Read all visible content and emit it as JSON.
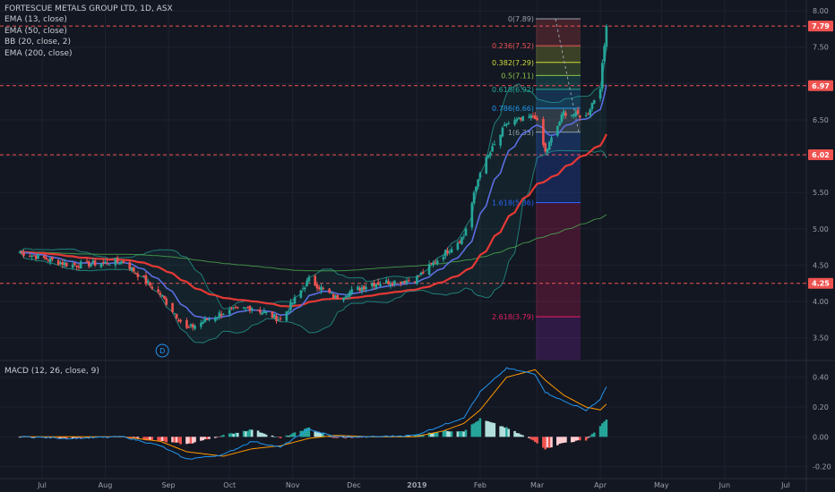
{
  "legend": {
    "title": "FORTESCUE METALS GROUP LTD, 1D, ASX",
    "items": [
      "EMA (13, close)",
      "EMA (50, close)",
      "BB (20, close, 2)",
      "EMA (200, close)"
    ]
  },
  "macd_label": "MACD (12, 26, close, 9)",
  "colors": {
    "background": "#131722",
    "up": "#26a69a",
    "down": "#ef5350",
    "ema13": "#5b6ee1",
    "ema50": "#e53935",
    "ema200": "#4caf50",
    "bb": "#26a69a",
    "macd": "#2196f3",
    "signal": "#ff9800",
    "hline": "#ef5350"
  },
  "chart_data": [
    {
      "type": "candlestick",
      "x_ticks": [
        "Jul",
        "Aug",
        "Sep",
        "Oct",
        "Nov",
        "Dec",
        "2019",
        "Feb",
        "Mar",
        "Apr",
        "May",
        "Jun",
        "Jul"
      ],
      "y_ticks": [
        "3.50",
        "4.00",
        "4.50",
        "5.00",
        "5.50",
        "6.00",
        "6.50",
        "7.00",
        "7.50",
        "8.00"
      ],
      "ylim": [
        3.2,
        8.1
      ],
      "price_labels": [
        "7.79",
        "6.97",
        "6.02",
        "4.25"
      ],
      "horizontal_levels": [
        7.79,
        6.97,
        6.02,
        4.25
      ],
      "fib_levels": [
        {
          "label": "0(7.89)",
          "value": 7.89
        },
        {
          "label": "0.236(7.52)",
          "value": 7.52
        },
        {
          "label": "0.382(7.29)",
          "value": 7.29
        },
        {
          "label": "0.5(7.11)",
          "value": 7.11
        },
        {
          "label": "0.618(6.92)",
          "value": 6.92
        },
        {
          "label": "0.786(6.66)",
          "value": 6.66
        },
        {
          "label": "1(6.33)",
          "value": 6.33
        },
        {
          "label": "1.618(5.36)",
          "value": 5.36
        },
        {
          "label": "2.618(3.79)",
          "value": 3.79
        }
      ],
      "annotation": "D",
      "key_prices": [
        {
          "date": "Jun 20",
          "close": 4.68
        },
        {
          "date": "Jul 15",
          "close": 4.5
        },
        {
          "date": "Aug 10",
          "close": 4.55
        },
        {
          "date": "Aug 28",
          "close": 4.1
        },
        {
          "date": "Sep 10",
          "close": 3.62
        },
        {
          "date": "Sep 28",
          "close": 3.85
        },
        {
          "date": "Oct 12",
          "close": 3.92
        },
        {
          "date": "Oct 26",
          "close": 3.75
        },
        {
          "date": "Nov 9",
          "close": 4.3
        },
        {
          "date": "Nov 22",
          "close": 4.05
        },
        {
          "date": "Dec 10",
          "close": 4.25
        },
        {
          "date": "Dec 31",
          "close": 4.3
        },
        {
          "date": "Jan 14",
          "close": 4.65
        },
        {
          "date": "Jan 24",
          "close": 4.9
        },
        {
          "date": "Feb 1",
          "close": 5.8
        },
        {
          "date": "Feb 14",
          "close": 6.45
        },
        {
          "date": "Feb 28",
          "close": 6.55
        },
        {
          "date": "Mar 5",
          "close": 6.05
        },
        {
          "date": "Mar 14",
          "close": 6.6
        },
        {
          "date": "Mar 25",
          "close": 6.55
        },
        {
          "date": "Apr 1",
          "close": 6.97
        },
        {
          "date": "Apr 4",
          "close": 7.79
        }
      ]
    },
    {
      "type": "line",
      "title": "MACD (12, 26, close, 9)",
      "y_ticks": [
        "0.40",
        "0.20",
        "0.00",
        "-0.20"
      ],
      "ylim": [
        -0.25,
        0.5
      ],
      "macd_points": [
        {
          "date": "Jun 20",
          "value": 0.0
        },
        {
          "date": "Jul 15",
          "value": -0.01
        },
        {
          "date": "Aug 10",
          "value": 0.0
        },
        {
          "date": "Aug 28",
          "value": -0.06
        },
        {
          "date": "Sep 10",
          "value": -0.15
        },
        {
          "date": "Sep 28",
          "value": -0.12
        },
        {
          "date": "Oct 12",
          "value": -0.03
        },
        {
          "date": "Oct 26",
          "value": -0.07
        },
        {
          "date": "Nov 9",
          "value": 0.05
        },
        {
          "date": "Nov 22",
          "value": 0.0
        },
        {
          "date": "Dec 10",
          "value": 0.0
        },
        {
          "date": "Dec 31",
          "value": 0.01
        },
        {
          "date": "Jan 14",
          "value": 0.08
        },
        {
          "date": "Jan 24",
          "value": 0.13
        },
        {
          "date": "Feb 1",
          "value": 0.3
        },
        {
          "date": "Feb 14",
          "value": 0.46
        },
        {
          "date": "Feb 28",
          "value": 0.42
        },
        {
          "date": "Mar 5",
          "value": 0.3
        },
        {
          "date": "Mar 14",
          "value": 0.24
        },
        {
          "date": "Mar 25",
          "value": 0.18
        },
        {
          "date": "Apr 1",
          "value": 0.25
        },
        {
          "date": "Apr 4",
          "value": 0.34
        }
      ],
      "signal_points": [
        {
          "date": "Jun 20",
          "value": 0.0
        },
        {
          "date": "Jul 15",
          "value": 0.0
        },
        {
          "date": "Aug 10",
          "value": 0.0
        },
        {
          "date": "Aug 28",
          "value": -0.03
        },
        {
          "date": "Sep 10",
          "value": -0.1
        },
        {
          "date": "Sep 28",
          "value": -0.13
        },
        {
          "date": "Oct 12",
          "value": -0.08
        },
        {
          "date": "Oct 26",
          "value": -0.06
        },
        {
          "date": "Nov 9",
          "value": -0.01
        },
        {
          "date": "Nov 22",
          "value": 0.01
        },
        {
          "date": "Dec 10",
          "value": 0.0
        },
        {
          "date": "Dec 31",
          "value": 0.0
        },
        {
          "date": "Jan 14",
          "value": 0.04
        },
        {
          "date": "Jan 24",
          "value": 0.09
        },
        {
          "date": "Feb 1",
          "value": 0.18
        },
        {
          "date": "Feb 14",
          "value": 0.4
        },
        {
          "date": "Feb 28",
          "value": 0.45
        },
        {
          "date": "Mar 5",
          "value": 0.38
        },
        {
          "date": "Mar 14",
          "value": 0.28
        },
        {
          "date": "Mar 25",
          "value": 0.2
        },
        {
          "date": "Apr 1",
          "value": 0.18
        },
        {
          "date": "Apr 4",
          "value": 0.22
        }
      ]
    }
  ]
}
